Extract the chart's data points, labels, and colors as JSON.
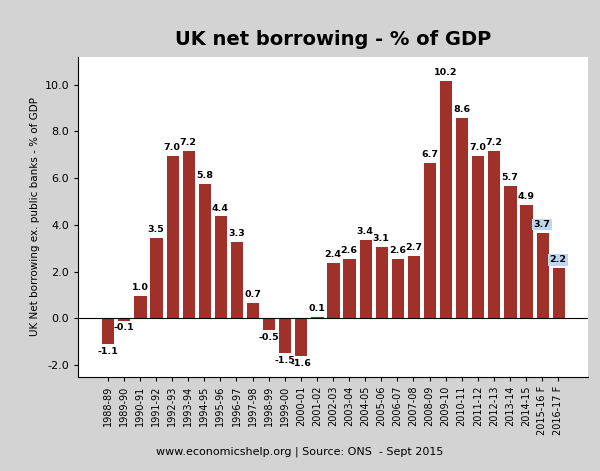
{
  "categories": [
    "1988-89",
    "1989-90",
    "1990-91",
    "1991-92",
    "1992-93",
    "1993-94",
    "1994-95",
    "1995-96",
    "1996-97",
    "1997-98",
    "1998-99",
    "1999-00",
    "2000-01",
    "2001-02",
    "2002-03",
    "2003-04",
    "2004-05",
    "2005-06",
    "2006-07",
    "2007-08",
    "2008-09",
    "2009-10",
    "2010-11",
    "2011-12",
    "2012-13",
    "2013-14",
    "2014-15",
    "2015-16 F",
    "2016-17 F"
  ],
  "values": [
    -1.1,
    -0.1,
    1.0,
    3.5,
    7.0,
    7.2,
    5.8,
    4.4,
    3.3,
    0.7,
    -0.5,
    -1.5,
    -1.6,
    0.1,
    2.4,
    2.6,
    3.4,
    3.1,
    2.6,
    2.7,
    6.7,
    10.2,
    8.6,
    7.0,
    7.2,
    5.7,
    4.9,
    3.7,
    2.2
  ],
  "forecast_indices": [
    27,
    28
  ],
  "bar_color": "#A0312A",
  "forecast_label_bg": "#BDD7EE",
  "title": "UK net borrowing - % of GDP",
  "ylabel": "UK Net borrowing ex. public banks - % of GDP",
  "footnote": "www.economicshelp.org | Source: ONS  - Sept 2015",
  "ylim": [
    -2.5,
    11.2
  ],
  "yticks": [
    -2.0,
    0.0,
    2.0,
    4.0,
    6.0,
    8.0,
    10.0
  ],
  "ytick_labels": [
    "-2.0",
    "0.0",
    "2.0",
    "4.0",
    "6.0",
    "8.0",
    "10.0"
  ],
  "title_fontsize": 14,
  "ylabel_fontsize": 7.5,
  "xtick_fontsize": 7.0,
  "ytick_fontsize": 8.0,
  "bar_label_fontsize": 6.8,
  "footnote_fontsize": 8.0,
  "bar_width": 0.82
}
